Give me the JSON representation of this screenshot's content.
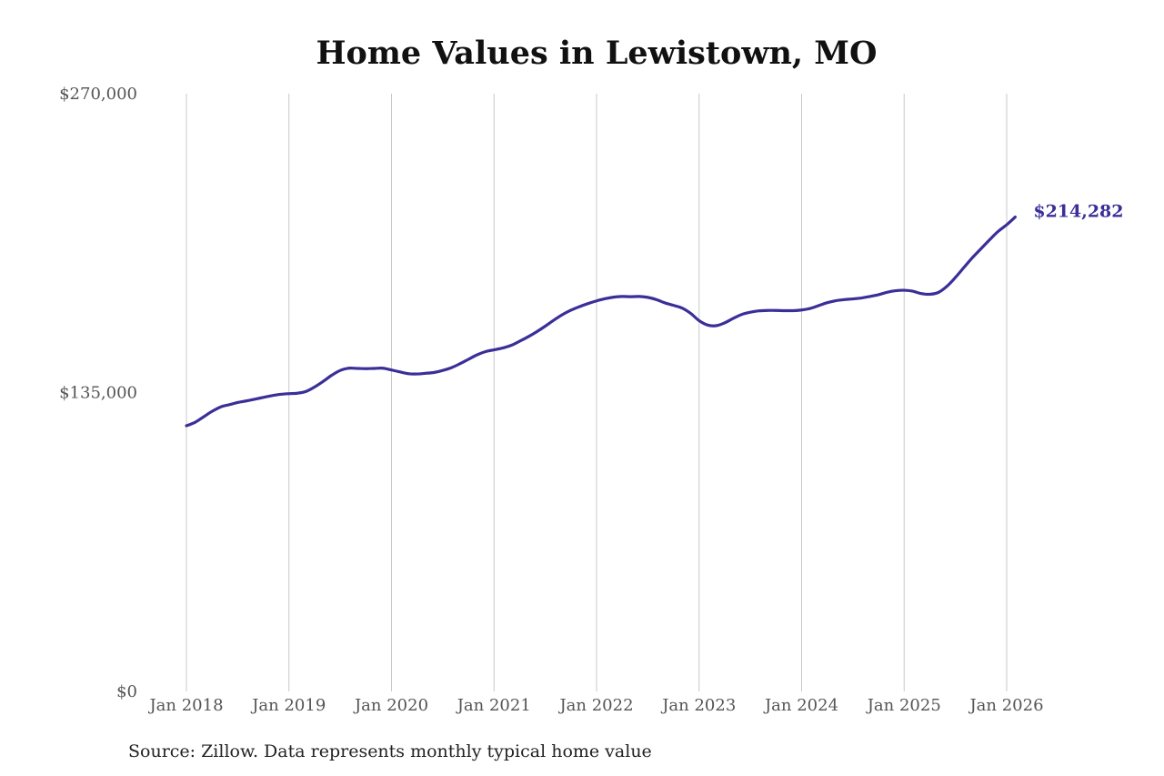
{
  "chart_data": {
    "type": "line",
    "title": "Home Values in Lewistown, MO",
    "source": "Source: Zillow. Data represents monthly typical home value",
    "xlabel": "",
    "ylabel": "",
    "ylim": [
      0,
      270000
    ],
    "y_ticks": [
      {
        "value": 0,
        "label": "$0"
      },
      {
        "value": 135000,
        "label": "$135,000"
      },
      {
        "value": 270000,
        "label": "$270,000"
      }
    ],
    "x_ticks": [
      {
        "value": 2018.0,
        "label": "Jan 2018"
      },
      {
        "value": 2019.0,
        "label": "Jan 2019"
      },
      {
        "value": 2020.0,
        "label": "Jan 2020"
      },
      {
        "value": 2021.0,
        "label": "Jan 2021"
      },
      {
        "value": 2022.0,
        "label": "Jan 2022"
      },
      {
        "value": 2023.0,
        "label": "Jan 2023"
      },
      {
        "value": 2024.0,
        "label": "Jan 2024"
      },
      {
        "value": 2025.0,
        "label": "Jan 2025"
      },
      {
        "value": 2026.0,
        "label": "Jan 2026"
      }
    ],
    "grid": {
      "vertical": true,
      "horizontal": false
    },
    "line_color": "#3a2f98",
    "grid_color": "#c8c8c8",
    "end_label": "$214,282",
    "series": [
      {
        "points": [
          [
            2018.0,
            120000
          ],
          [
            2018.083,
            121500
          ],
          [
            2018.167,
            124000
          ],
          [
            2018.25,
            126500
          ],
          [
            2018.333,
            128500
          ],
          [
            2018.417,
            129500
          ],
          [
            2018.5,
            130500
          ],
          [
            2018.583,
            131200
          ],
          [
            2018.667,
            132000
          ],
          [
            2018.75,
            132800
          ],
          [
            2018.833,
            133600
          ],
          [
            2018.917,
            134200
          ],
          [
            2019.0,
            134500
          ],
          [
            2019.083,
            134700
          ],
          [
            2019.167,
            135500
          ],
          [
            2019.25,
            137500
          ],
          [
            2019.333,
            140000
          ],
          [
            2019.417,
            142800
          ],
          [
            2019.5,
            145000
          ],
          [
            2019.583,
            146000
          ],
          [
            2019.667,
            145900
          ],
          [
            2019.75,
            145800
          ],
          [
            2019.833,
            145900
          ],
          [
            2019.917,
            146000
          ],
          [
            2020.0,
            145200
          ],
          [
            2020.083,
            144300
          ],
          [
            2020.167,
            143500
          ],
          [
            2020.25,
            143400
          ],
          [
            2020.333,
            143700
          ],
          [
            2020.417,
            144100
          ],
          [
            2020.5,
            145000
          ],
          [
            2020.583,
            146200
          ],
          [
            2020.667,
            148000
          ],
          [
            2020.75,
            150000
          ],
          [
            2020.833,
            152000
          ],
          [
            2020.917,
            153500
          ],
          [
            2021.0,
            154300
          ],
          [
            2021.083,
            155100
          ],
          [
            2021.167,
            156300
          ],
          [
            2021.25,
            158200
          ],
          [
            2021.333,
            160200
          ],
          [
            2021.417,
            162500
          ],
          [
            2021.5,
            165000
          ],
          [
            2021.583,
            167700
          ],
          [
            2021.667,
            170200
          ],
          [
            2021.75,
            172200
          ],
          [
            2021.833,
            173800
          ],
          [
            2021.917,
            175200
          ],
          [
            2022.0,
            176400
          ],
          [
            2022.083,
            177400
          ],
          [
            2022.167,
            178100
          ],
          [
            2022.25,
            178400
          ],
          [
            2022.333,
            178300
          ],
          [
            2022.417,
            178400
          ],
          [
            2022.5,
            178000
          ],
          [
            2022.583,
            177000
          ],
          [
            2022.667,
            175500
          ],
          [
            2022.75,
            174400
          ],
          [
            2022.833,
            173200
          ],
          [
            2022.917,
            170800
          ],
          [
            2023.0,
            167500
          ],
          [
            2023.083,
            165500
          ],
          [
            2023.167,
            165200
          ],
          [
            2023.25,
            166500
          ],
          [
            2023.333,
            168500
          ],
          [
            2023.417,
            170300
          ],
          [
            2023.5,
            171300
          ],
          [
            2023.583,
            171900
          ],
          [
            2023.667,
            172100
          ],
          [
            2023.75,
            172100
          ],
          [
            2023.833,
            172000
          ],
          [
            2023.917,
            172000
          ],
          [
            2024.0,
            172300
          ],
          [
            2024.083,
            173000
          ],
          [
            2024.167,
            174300
          ],
          [
            2024.25,
            175600
          ],
          [
            2024.333,
            176500
          ],
          [
            2024.417,
            177000
          ],
          [
            2024.5,
            177300
          ],
          [
            2024.583,
            177700
          ],
          [
            2024.667,
            178400
          ],
          [
            2024.75,
            179200
          ],
          [
            2024.833,
            180300
          ],
          [
            2024.917,
            181000
          ],
          [
            2025.0,
            181200
          ],
          [
            2025.083,
            180800
          ],
          [
            2025.167,
            179700
          ],
          [
            2025.25,
            179400
          ],
          [
            2025.333,
            180200
          ],
          [
            2025.417,
            183000
          ],
          [
            2025.5,
            187000
          ],
          [
            2025.583,
            191500
          ],
          [
            2025.667,
            196000
          ],
          [
            2025.75,
            200000
          ],
          [
            2025.833,
            204000
          ],
          [
            2025.917,
            207800
          ],
          [
            2026.0,
            210800
          ],
          [
            2026.083,
            214282
          ]
        ]
      }
    ]
  }
}
